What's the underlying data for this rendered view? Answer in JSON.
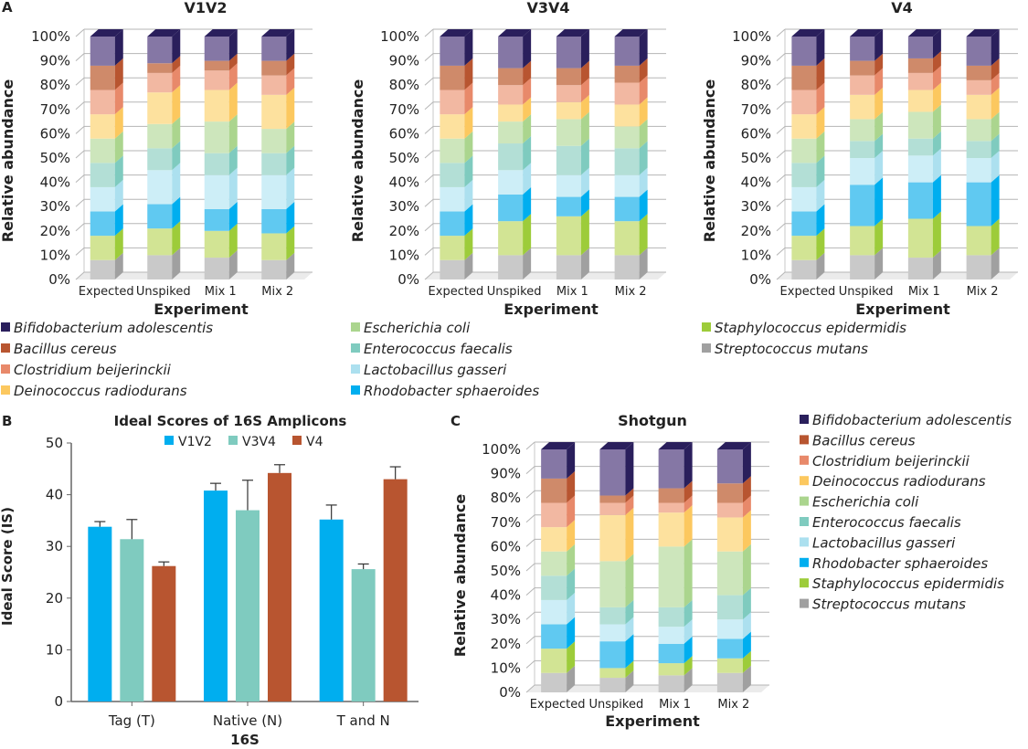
{
  "panels": {
    "A": "A",
    "B": "B",
    "C": "C"
  },
  "species": [
    {
      "name": "Bifidobacterium adolescentis",
      "color": "#2a1f5c",
      "soft": "#8577a5"
    },
    {
      "name": "Bacillus cereus",
      "color": "#b85530",
      "soft": "#cf8a6a"
    },
    {
      "name": "Clostridium beijerinckii",
      "color": "#e8896a",
      "soft": "#f2b8a2"
    },
    {
      "name": "Deinococcus radiodurans",
      "color": "#fcc85f",
      "soft": "#fde19e"
    },
    {
      "name": "Escherichia coli",
      "color": "#abd58e",
      "soft": "#cde6bc"
    },
    {
      "name": "Enterococcus faecalis",
      "color": "#7fcbbf",
      "soft": "#b3dfd6"
    },
    {
      "name": "Lactobacillus gasseri",
      "color": "#ace0ef",
      "soft": "#cdeef7"
    },
    {
      "name": "Rhodobacter sphaeroides",
      "color": "#00aeef",
      "soft": "#60c9f1"
    },
    {
      "name": "Staphylococcus epidermidis",
      "color": "#9dcc3a",
      "soft": "#d2e494"
    },
    {
      "name": "Streptococcus mutans",
      "color": "#a0a0a0",
      "soft": "#c9c9c9"
    }
  ],
  "chart_data": [
    {
      "id": "V1V2",
      "type": "bar",
      "stacked": true,
      "title": "V1V2",
      "xlabel": "Experiment",
      "ylabel": "Relative abundance",
      "categories": [
        "Expected",
        "Unspiked",
        "Mix 1",
        "Mix 2"
      ],
      "ylim": [
        0,
        100
      ],
      "yticks": [
        "0%",
        "10%",
        "20%",
        "30%",
        "40%",
        "50%",
        "60%",
        "70%",
        "80%",
        "90%",
        "100%"
      ],
      "series": [
        {
          "name": "Streptococcus mutans",
          "values": [
            8,
            10,
            9,
            8
          ]
        },
        {
          "name": "Staphylococcus epidermidis",
          "values": [
            10,
            11,
            11,
            11
          ]
        },
        {
          "name": "Rhodobacter sphaeroides",
          "values": [
            10,
            10,
            9,
            10
          ]
        },
        {
          "name": "Lactobacillus gasseri",
          "values": [
            10,
            14,
            14,
            14
          ]
        },
        {
          "name": "Enterococcus faecalis",
          "values": [
            10,
            9,
            9,
            9
          ]
        },
        {
          "name": "Escherichia coli",
          "values": [
            10,
            10,
            13,
            10
          ]
        },
        {
          "name": "Deinococcus radiodurans",
          "values": [
            10,
            13,
            13,
            14
          ]
        },
        {
          "name": "Clostridium beijerinckii",
          "values": [
            10,
            8,
            8,
            8
          ]
        },
        {
          "name": "Bacillus cereus",
          "values": [
            10,
            4,
            4,
            6
          ]
        },
        {
          "name": "Bifidobacterium adolescentis",
          "values": [
            12,
            11,
            10,
            10
          ]
        }
      ]
    },
    {
      "id": "V3V4",
      "type": "bar",
      "stacked": true,
      "title": "V3V4",
      "xlabel": "Experiment",
      "ylabel": "Relative abundance",
      "categories": [
        "Expected",
        "Unspiked",
        "Mix 1",
        "Mix 2"
      ],
      "ylim": [
        0,
        100
      ],
      "yticks": [
        "0%",
        "10%",
        "20%",
        "30%",
        "40%",
        "50%",
        "60%",
        "70%",
        "80%",
        "90%",
        "100%"
      ],
      "series": [
        {
          "name": "Streptococcus mutans",
          "values": [
            8,
            10,
            10,
            10
          ]
        },
        {
          "name": "Staphylococcus epidermidis",
          "values": [
            10,
            14,
            16,
            14
          ]
        },
        {
          "name": "Rhodobacter sphaeroides",
          "values": [
            10,
            11,
            8,
            10
          ]
        },
        {
          "name": "Lactobacillus gasseri",
          "values": [
            10,
            10,
            9,
            9
          ]
        },
        {
          "name": "Enterococcus faecalis",
          "values": [
            10,
            11,
            12,
            11
          ]
        },
        {
          "name": "Escherichia coli",
          "values": [
            10,
            9,
            11,
            9
          ]
        },
        {
          "name": "Deinococcus radiodurans",
          "values": [
            10,
            7,
            7,
            9
          ]
        },
        {
          "name": "Clostridium beijerinckii",
          "values": [
            10,
            8,
            7,
            9
          ]
        },
        {
          "name": "Bacillus cereus",
          "values": [
            10,
            7,
            7,
            7
          ]
        },
        {
          "name": "Bifidobacterium adolescentis",
          "values": [
            12,
            13,
            13,
            12
          ]
        }
      ]
    },
    {
      "id": "V4",
      "type": "bar",
      "stacked": true,
      "title": "V4",
      "xlabel": "Experiment",
      "ylabel": "Relative abundance",
      "categories": [
        "Expected",
        "Unspiked",
        "Mix 1",
        "Mix 2"
      ],
      "ylim": [
        0,
        100
      ],
      "yticks": [
        "0%",
        "10%",
        "20%",
        "30%",
        "40%",
        "50%",
        "60%",
        "70%",
        "80%",
        "90%",
        "100%"
      ],
      "series": [
        {
          "name": "Streptococcus mutans",
          "values": [
            8,
            10,
            9,
            10
          ]
        },
        {
          "name": "Staphylococcus epidermidis",
          "values": [
            10,
            12,
            16,
            12
          ]
        },
        {
          "name": "Rhodobacter sphaeroides",
          "values": [
            10,
            17,
            15,
            18
          ]
        },
        {
          "name": "Lactobacillus gasseri",
          "values": [
            10,
            11,
            11,
            10
          ]
        },
        {
          "name": "Enterococcus faecalis",
          "values": [
            10,
            7,
            7,
            7
          ]
        },
        {
          "name": "Escherichia coli",
          "values": [
            10,
            9,
            11,
            9
          ]
        },
        {
          "name": "Deinococcus radiodurans",
          "values": [
            10,
            10,
            9,
            10
          ]
        },
        {
          "name": "Clostridium beijerinckii",
          "values": [
            10,
            8,
            7,
            6
          ]
        },
        {
          "name": "Bacillus cereus",
          "values": [
            10,
            6,
            6,
            6
          ]
        },
        {
          "name": "Bifidobacterium adolescentis",
          "values": [
            12,
            10,
            9,
            12
          ]
        }
      ]
    },
    {
      "id": "IS",
      "type": "bar",
      "title": "Ideal Scores of 16S Amplicons",
      "xlabel": "16S",
      "ylabel": "Ideal Score (IS)",
      "categories": [
        "Tag (T)",
        "Native (N)",
        "T and N"
      ],
      "ylim": [
        0,
        50
      ],
      "yticks": [
        "0",
        "10",
        "20",
        "30",
        "40",
        "50"
      ],
      "series": [
        {
          "name": "V1V2",
          "color": "#00aeef",
          "values": [
            33.8,
            40.8,
            35.2
          ],
          "errors": [
            1.0,
            1.4,
            2.8
          ]
        },
        {
          "name": "V3V4",
          "color": "#7fcbbf",
          "values": [
            31.4,
            37.0,
            25.6
          ],
          "errors": [
            3.8,
            5.8,
            1.0
          ]
        },
        {
          "name": "V4",
          "color": "#b85530",
          "values": [
            26.2,
            44.2,
            43.0
          ],
          "errors": [
            0.8,
            1.6,
            2.4
          ]
        }
      ]
    },
    {
      "id": "Shotgun",
      "type": "bar",
      "stacked": true,
      "title": "Shotgun",
      "xlabel": "Experiment",
      "ylabel": "Relative abundance",
      "categories": [
        "Expected",
        "Unspiked",
        "Mix 1",
        "Mix 2"
      ],
      "ylim": [
        0,
        100
      ],
      "yticks": [
        "0%",
        "10%",
        "20%",
        "30%",
        "40%",
        "50%",
        "60%",
        "70%",
        "80%",
        "90%",
        "100%"
      ],
      "series": [
        {
          "name": "Streptococcus mutans",
          "values": [
            8,
            6,
            7,
            8
          ]
        },
        {
          "name": "Staphylococcus epidermidis",
          "values": [
            10,
            4,
            5,
            6
          ]
        },
        {
          "name": "Rhodobacter sphaeroides",
          "values": [
            10,
            11,
            8,
            8
          ]
        },
        {
          "name": "Lactobacillus gasseri",
          "values": [
            10,
            7,
            7,
            8
          ]
        },
        {
          "name": "Enterococcus faecalis",
          "values": [
            10,
            7,
            8,
            10
          ]
        },
        {
          "name": "Escherichia coli",
          "values": [
            10,
            19,
            25,
            18
          ]
        },
        {
          "name": "Deinococcus radiodurans",
          "values": [
            10,
            19,
            14,
            14
          ]
        },
        {
          "name": "Clostridium beijerinckii",
          "values": [
            10,
            5,
            4,
            6
          ]
        },
        {
          "name": "Bacillus cereus",
          "values": [
            10,
            3,
            6,
            8
          ]
        },
        {
          "name": "Bifidobacterium adolescentis",
          "values": [
            12,
            19,
            16,
            14
          ]
        }
      ]
    }
  ]
}
